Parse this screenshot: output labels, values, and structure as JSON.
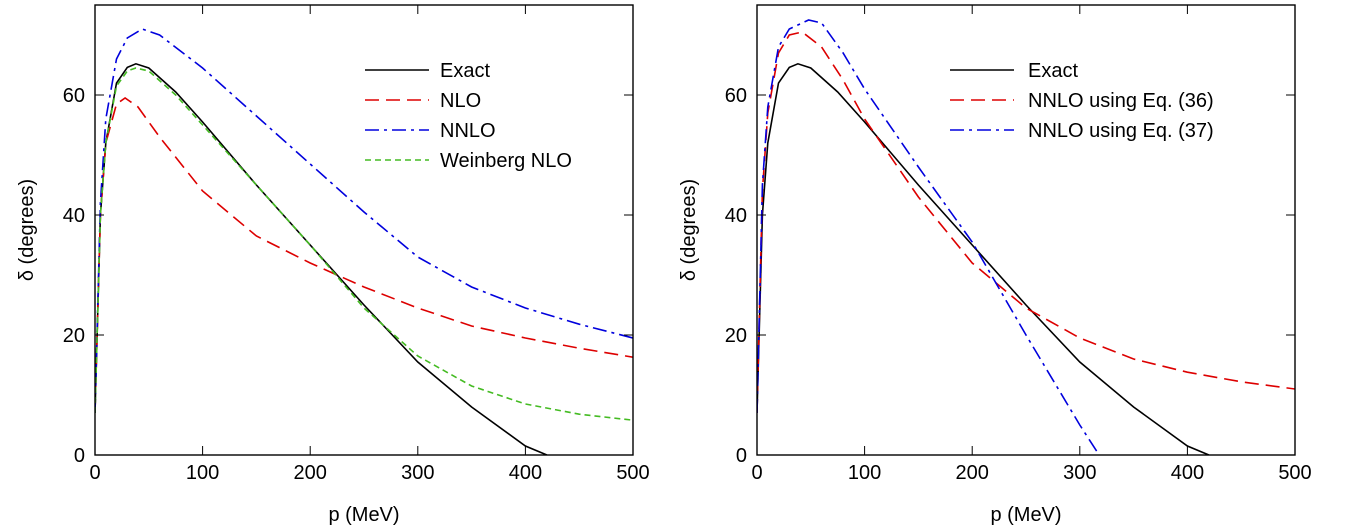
{
  "chart_data": [
    {
      "type": "line",
      "xlabel": "p (MeV)",
      "ylabel": "δ (degrees)",
      "xlim": [
        0,
        500
      ],
      "ylim": [
        0,
        75
      ],
      "xticks": [
        0,
        100,
        200,
        300,
        400,
        500
      ],
      "yticks": [
        0,
        20,
        40,
        60
      ],
      "grid": false,
      "legend_position": "top-right",
      "series": [
        {
          "name": "Exact",
          "color": "#000000",
          "dash": "solid",
          "x": [
            0,
            5,
            10,
            20,
            30,
            38,
            50,
            75,
            100,
            150,
            200,
            250,
            300,
            350,
            400,
            420
          ],
          "y": [
            7,
            40,
            52,
            62,
            64.6,
            65.2,
            64.5,
            60.5,
            55.5,
            45,
            35,
            25,
            15.5,
            8,
            1.5,
            0
          ]
        },
        {
          "name": "NLO",
          "color": "#dd0000",
          "dash": "long",
          "x": [
            0,
            5,
            10,
            20,
            28,
            40,
            60,
            100,
            150,
            200,
            250,
            300,
            350,
            400,
            450,
            500
          ],
          "y": [
            7,
            40,
            52,
            58.5,
            59.5,
            58,
            53,
            44,
            36.5,
            32,
            28,
            24.5,
            21.5,
            19.5,
            17.8,
            16.3
          ]
        },
        {
          "name": "NNLO",
          "color": "#0000dd",
          "dash": "dashdot",
          "x": [
            0,
            5,
            10,
            20,
            30,
            44,
            60,
            100,
            150,
            200,
            250,
            300,
            350,
            400,
            450,
            500
          ],
          "y": [
            7,
            42,
            56,
            66,
            69.5,
            71,
            70,
            64.5,
            56.5,
            48.5,
            40.5,
            33,
            28,
            24.5,
            21.8,
            19.5
          ]
        },
        {
          "name": "Weinberg NLO",
          "color": "#44bb22",
          "dash": "short",
          "x": [
            0,
            5,
            10,
            20,
            30,
            38,
            50,
            75,
            100,
            150,
            200,
            250,
            300,
            350,
            400,
            450,
            500
          ],
          "y": [
            7,
            40,
            52,
            61.5,
            64,
            64.5,
            64,
            60,
            55,
            45,
            35,
            24.5,
            16.5,
            11.5,
            8.5,
            6.8,
            5.8
          ]
        }
      ]
    },
    {
      "type": "line",
      "xlabel": "p (MeV)",
      "ylabel": "δ (degrees)",
      "xlim": [
        0,
        500
      ],
      "ylim": [
        0,
        75
      ],
      "xticks": [
        0,
        100,
        200,
        300,
        400,
        500
      ],
      "yticks": [
        0,
        20,
        40,
        60
      ],
      "grid": false,
      "legend_position": "top-right",
      "series": [
        {
          "name": "Exact",
          "color": "#000000",
          "dash": "solid",
          "x": [
            0,
            5,
            10,
            20,
            30,
            38,
            50,
            75,
            100,
            150,
            200,
            250,
            300,
            350,
            400,
            420
          ],
          "y": [
            7,
            40,
            52,
            62,
            64.6,
            65.2,
            64.5,
            60.5,
            55.5,
            45,
            35,
            25,
            15.5,
            8,
            1.5,
            0
          ]
        },
        {
          "name": "NNLO using Eq. (36)",
          "color": "#dd0000",
          "dash": "long",
          "x": [
            0,
            5,
            10,
            20,
            30,
            42,
            60,
            80,
            100,
            150,
            200,
            250,
            300,
            350,
            400,
            450,
            500
          ],
          "y": [
            7,
            44,
            57,
            67,
            70,
            70.5,
            68,
            62.5,
            56,
            43,
            32,
            24.5,
            19.5,
            16,
            13.8,
            12.2,
            11
          ]
        },
        {
          "name": "NNLO using Eq. (37)",
          "color": "#0000dd",
          "dash": "dashdot",
          "x": [
            0,
            5,
            10,
            20,
            30,
            48,
            60,
            80,
            100,
            150,
            200,
            250,
            280,
            300,
            318
          ],
          "y": [
            7,
            45,
            58,
            68,
            71,
            72.5,
            72,
            67,
            61,
            48,
            35.5,
            20,
            11,
            5,
            0
          ]
        }
      ]
    }
  ]
}
